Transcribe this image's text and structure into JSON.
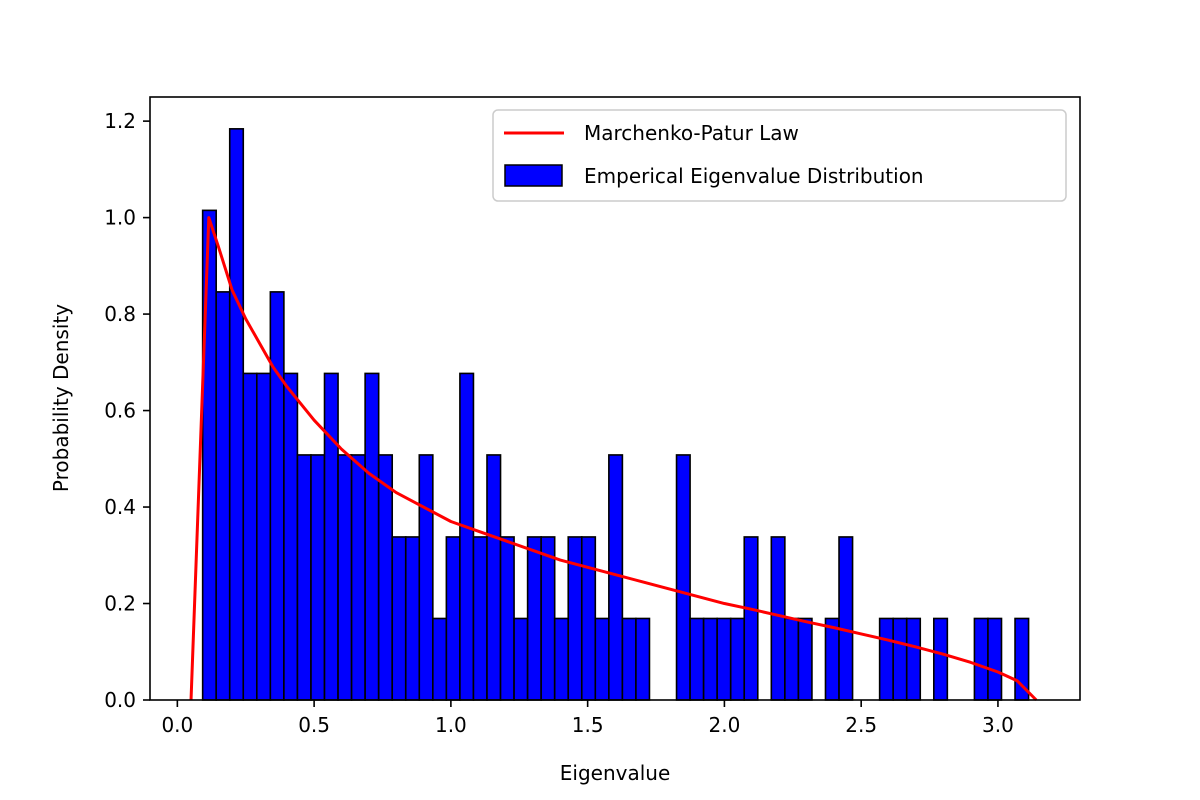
{
  "chart_data": {
    "type": "bar",
    "title": "",
    "xlabel": "Eigenvalue",
    "ylabel": "Probability Density",
    "xlim": [
      -0.1,
      3.3
    ],
    "ylim": [
      0,
      1.25
    ],
    "xticks": [
      "0.0",
      "0.5",
      "1.0",
      "1.5",
      "2.0",
      "2.5",
      "3.0"
    ],
    "yticks": [
      "0.0",
      "0.2",
      "0.4",
      "0.6",
      "0.8",
      "1.0",
      "1.2"
    ],
    "grid": false,
    "legend_position": "top-right",
    "histogram": {
      "name": "Emperical Eigenvalue Distribution",
      "color": "#0000ff",
      "edgecolor": "#000000",
      "bin_start": 0.0925,
      "bin_width": 0.0495,
      "densities": [
        1.015,
        0.846,
        1.184,
        0.677,
        0.677,
        0.846,
        0.677,
        0.508,
        0.508,
        0.677,
        0.508,
        0.508,
        0.677,
        0.508,
        0.338,
        0.338,
        0.508,
        0.169,
        0.338,
        0.677,
        0.338,
        0.508,
        0.338,
        0.169,
        0.338,
        0.338,
        0.169,
        0.338,
        0.338,
        0.169,
        0.508,
        0.169,
        0.169,
        0,
        0,
        0.508,
        0.169,
        0.169,
        0.169,
        0.169,
        0.338,
        0,
        0.338,
        0.169,
        0.169,
        0,
        0.169,
        0.338,
        0,
        0,
        0.169,
        0.169,
        0.169,
        0,
        0.169,
        0,
        0,
        0.169,
        0.169,
        0,
        0.169
      ]
    },
    "curve": {
      "name": "Marchenko-Patur Law",
      "color": "#ff0000",
      "x": [
        0.05,
        0.115,
        0.15,
        0.2,
        0.25,
        0.3,
        0.35,
        0.4,
        0.5,
        0.6,
        0.7,
        0.8,
        0.9,
        1.0,
        1.1,
        1.2,
        1.3,
        1.4,
        1.5,
        1.6,
        1.7,
        1.8,
        1.9,
        2.0,
        2.1,
        2.2,
        2.3,
        2.4,
        2.5,
        2.6,
        2.7,
        2.8,
        2.9,
        3.0,
        3.07,
        3.14
      ],
      "y": [
        0.0,
        1.0,
        0.94,
        0.85,
        0.79,
        0.74,
        0.69,
        0.65,
        0.58,
        0.52,
        0.47,
        0.43,
        0.4,
        0.37,
        0.35,
        0.33,
        0.31,
        0.29,
        0.275,
        0.26,
        0.245,
        0.23,
        0.215,
        0.2,
        0.188,
        0.175,
        0.162,
        0.15,
        0.137,
        0.124,
        0.11,
        0.095,
        0.078,
        0.058,
        0.04,
        0.0
      ]
    }
  }
}
